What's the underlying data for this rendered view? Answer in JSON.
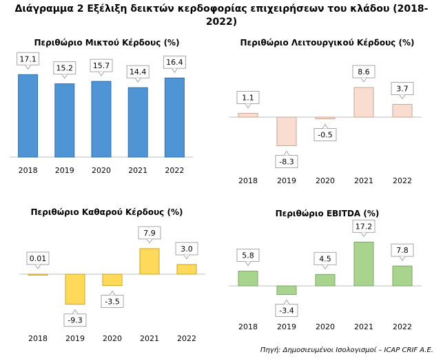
{
  "header": {
    "title": "Διάγραμμα 2 Εξέλιξη δεικτών κερδοφορίας επιχειρήσεων του κλάδου (2018-2022)"
  },
  "source": "Πηγή: Δημοσιευμένοι Ισολογισμοί – ICAP CRIF A.E.",
  "chart_data": [
    {
      "type": "bar",
      "title": "Περιθώριο Μικτού Κέρδους (%)",
      "categories": [
        "2018",
        "2019",
        "2020",
        "2021",
        "2022"
      ],
      "values": [
        17.1,
        15.2,
        15.7,
        14.4,
        16.4
      ],
      "color": "#4f95d6",
      "ylim": [
        0,
        20
      ]
    },
    {
      "type": "bar",
      "title": "Περιθώριο Λειτουργικού Κέρδους (%)",
      "categories": [
        "2018",
        "2019",
        "2020",
        "2021",
        "2022"
      ],
      "values": [
        1.1,
        -8.3,
        -0.5,
        8.6,
        3.7
      ],
      "color": "#f9ddd0",
      "ylim": [
        -10,
        10
      ]
    },
    {
      "type": "bar",
      "title": "Περιθώριο Καθαρού Κέρδους (%)",
      "categories": [
        "2018",
        "2019",
        "2020",
        "2021",
        "2022"
      ],
      "values": [
        0.01,
        -9.3,
        -3.5,
        7.9,
        3.0
      ],
      "value_labels": [
        "0.01",
        "-9.3",
        "-3.5",
        "7.9",
        "3.0"
      ],
      "color": "#ffd95a",
      "ylim": [
        -10,
        10
      ]
    },
    {
      "type": "bar",
      "title": "Περιθώριο EBITDA (%)",
      "categories": [
        "2018",
        "2019",
        "2020",
        "2021",
        "2022"
      ],
      "values": [
        5.8,
        -3.4,
        4.5,
        17.2,
        7.8
      ],
      "color": "#a8d48e",
      "ylim": [
        -5,
        20
      ]
    }
  ]
}
